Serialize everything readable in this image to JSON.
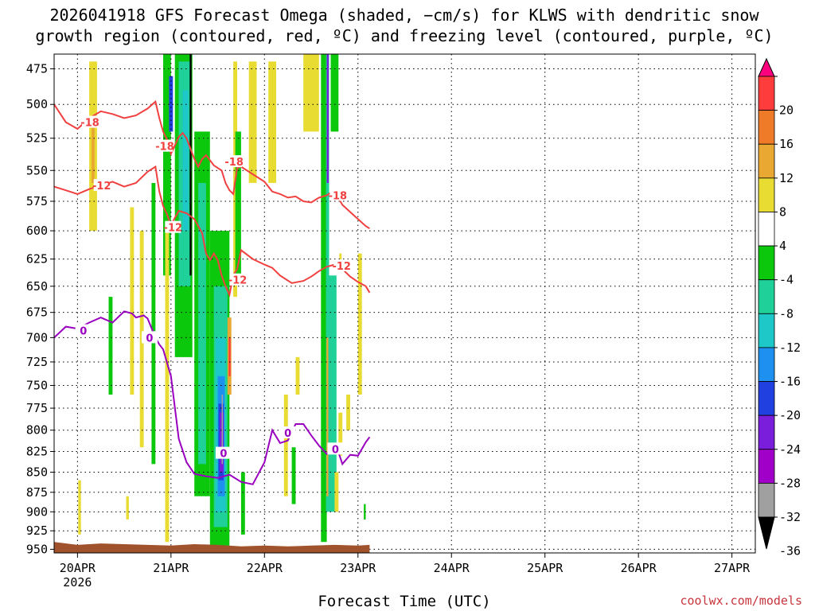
{
  "title": {
    "line1": "2026041918 GFS Forecast Omega (shaded, −cm/s) for KLWS with dendritic snow",
    "line2": "growth region (contoured, red, ºC) and freezing level (contoured, purple, ºC)"
  },
  "credit": "coolwx.com/models",
  "colors": {
    "temperature_contour": "#f04040",
    "freezing_contour": "#9a00c0",
    "terrain": "#a0522d",
    "grid": "#000000"
  },
  "chart_data": {
    "type": "heatmap",
    "xlabel": "Forecast Time (UTC)",
    "ylabel": "",
    "x_ticks": [
      {
        "label": "20APR",
        "sublabel": "2026",
        "time": "2026-04-20T00"
      },
      {
        "label": "21APR",
        "time": "2026-04-21T00"
      },
      {
        "label": "22APR",
        "time": "2026-04-22T00"
      },
      {
        "label": "23APR",
        "time": "2026-04-23T00"
      },
      {
        "label": "24APR",
        "time": "2026-04-24T00"
      },
      {
        "label": "25APR",
        "time": "2026-04-25T00"
      },
      {
        "label": "26APR",
        "time": "2026-04-26T00"
      },
      {
        "label": "27APR",
        "time": "2026-04-27T00"
      }
    ],
    "xlim": [
      "2026-04-19T18",
      "2026-04-27T06"
    ],
    "y_ticks": [
      475,
      500,
      525,
      550,
      575,
      600,
      625,
      650,
      675,
      700,
      725,
      750,
      775,
      800,
      825,
      850,
      875,
      900,
      925,
      950
    ],
    "ylim": [
      955,
      465
    ],
    "y_scale": "log-pressure",
    "grid": true,
    "colorbar": {
      "labels": [
        "20",
        "16",
        "12",
        "8",
        "4",
        "-4",
        "-8",
        "-12",
        "-16",
        "-20",
        "-24",
        "-28",
        "-32",
        "-36"
      ],
      "bins": [
        {
          "from": 20,
          "to": 24,
          "color": "#ff007f"
        },
        {
          "from": 16,
          "to": 20,
          "color": "#ff3c3c"
        },
        {
          "from": 12,
          "to": 16,
          "color": "#ef7a28"
        },
        {
          "from": 8,
          "to": 12,
          "color": "#e8a832"
        },
        {
          "from": 4,
          "to": 8,
          "color": "#e8dc32"
        },
        {
          "from": -4,
          "to": 4,
          "color": "#ffffff"
        },
        {
          "from": -8,
          "to": -4,
          "color": "#0cc80c"
        },
        {
          "from": -12,
          "to": -8,
          "color": "#1fd098"
        },
        {
          "from": -16,
          "to": -12,
          "color": "#1ec8c8"
        },
        {
          "from": -20,
          "to": -16,
          "color": "#1e90f0"
        },
        {
          "from": -24,
          "to": -20,
          "color": "#2040e0"
        },
        {
          "from": -28,
          "to": -24,
          "color": "#7a1edc"
        },
        {
          "from": -32,
          "to": -28,
          "color": "#a000c8"
        },
        {
          "from": -36,
          "to": -32,
          "color": "#a0a0a0"
        },
        {
          "from": -40,
          "to": -36,
          "color": "#000000"
        }
      ]
    },
    "omega_regions": [
      {
        "t0": 3,
        "t1": 5,
        "p_top": 470,
        "p_bot": 600,
        "value": 5
      },
      {
        "t0": 3.6,
        "t1": 4.4,
        "p_top": 515,
        "p_bot": 560,
        "value": 9
      },
      {
        "t0": 0.2,
        "t1": 0.9,
        "p_top": 860,
        "p_bot": 930,
        "value": 5
      },
      {
        "t0": 8,
        "t1": 9,
        "p_top": 660,
        "p_bot": 760,
        "value": -6
      },
      {
        "t0": 12.5,
        "t1": 13.2,
        "p_top": 880,
        "p_bot": 910,
        "value": 5
      },
      {
        "t0": 13.5,
        "t1": 14.5,
        "p_top": 580,
        "p_bot": 760,
        "value": 5
      },
      {
        "t0": 16,
        "t1": 17,
        "p_top": 600,
        "p_bot": 820,
        "value": 6
      },
      {
        "t0": 19,
        "t1": 20,
        "p_top": 560,
        "p_bot": 840,
        "value": -6
      },
      {
        "t0": 22,
        "t1": 24,
        "p_top": 465,
        "p_bot": 640,
        "value": -6
      },
      {
        "t0": 23.5,
        "t1": 24.5,
        "p_top": 480,
        "p_bot": 520,
        "value": -24
      },
      {
        "t0": 22.5,
        "t1": 23.5,
        "p_top": 600,
        "p_bot": 940,
        "value": 6
      },
      {
        "t0": 25,
        "t1": 29.5,
        "p_top": 465,
        "p_bot": 720,
        "value": -6
      },
      {
        "t0": 26,
        "t1": 29,
        "p_top": 470,
        "p_bot": 650,
        "value": -10
      },
      {
        "t0": 27,
        "t1": 28.5,
        "p_top": 490,
        "p_bot": 600,
        "value": -14
      },
      {
        "t0": 28.8,
        "t1": 29.3,
        "p_top": 465,
        "p_bot": 640,
        "value": -38
      },
      {
        "t0": 30,
        "t1": 34,
        "p_top": 520,
        "p_bot": 880,
        "value": -6
      },
      {
        "t0": 31,
        "t1": 33,
        "p_top": 560,
        "p_bot": 840,
        "value": -10
      },
      {
        "t0": 34,
        "t1": 39,
        "p_top": 600,
        "p_bot": 945,
        "value": -6
      },
      {
        "t0": 35,
        "t1": 38.5,
        "p_top": 650,
        "p_bot": 920,
        "value": -10
      },
      {
        "t0": 35.5,
        "t1": 38,
        "p_top": 700,
        "p_bot": 900,
        "value": -14
      },
      {
        "t0": 36,
        "t1": 37.8,
        "p_top": 740,
        "p_bot": 880,
        "value": -18
      },
      {
        "t0": 36.2,
        "t1": 37.5,
        "p_top": 770,
        "p_bot": 860,
        "value": -22
      },
      {
        "t0": 36.5,
        "t1": 37.5,
        "p_top": 780,
        "p_bot": 850,
        "value": -26
      },
      {
        "t0": 37,
        "t1": 37.3,
        "p_top": 760,
        "p_bot": 840,
        "value": -34
      },
      {
        "t0": 38.5,
        "t1": 39.5,
        "p_top": 680,
        "p_bot": 760,
        "value": 10
      },
      {
        "t0": 38.8,
        "t1": 39.3,
        "p_top": 700,
        "p_bot": 740,
        "value": 16
      },
      {
        "t0": 40,
        "t1": 41,
        "p_top": 470,
        "p_bot": 660,
        "value": 5
      },
      {
        "t0": 40.5,
        "t1": 42,
        "p_top": 520,
        "p_bot": 640,
        "value": -6
      },
      {
        "t0": 42,
        "t1": 43,
        "p_top": 850,
        "p_bot": 930,
        "value": -6
      },
      {
        "t0": 44,
        "t1": 46,
        "p_top": 470,
        "p_bot": 560,
        "value": 5
      },
      {
        "t0": 49,
        "t1": 51,
        "p_top": 470,
        "p_bot": 560,
        "value": 5
      },
      {
        "t0": 53,
        "t1": 54,
        "p_top": 760,
        "p_bot": 880,
        "value": 5
      },
      {
        "t0": 56,
        "t1": 57,
        "p_top": 720,
        "p_bot": 760,
        "value": 5
      },
      {
        "t0": 55,
        "t1": 56,
        "p_top": 820,
        "p_bot": 890,
        "value": -6
      },
      {
        "t0": 58,
        "t1": 62,
        "p_top": 465,
        "p_bot": 520,
        "value": 5
      },
      {
        "t0": 62.5,
        "t1": 64,
        "p_top": 465,
        "p_bot": 940,
        "value": -6
      },
      {
        "t0": 63.8,
        "t1": 64.6,
        "p_top": 465,
        "p_bot": 900,
        "value": -10
      },
      {
        "t0": 64,
        "t1": 64.5,
        "p_top": 465,
        "p_bot": 560,
        "value": -26
      },
      {
        "t0": 63.9,
        "t1": 64.4,
        "p_top": 700,
        "p_bot": 880,
        "value": 10
      },
      {
        "t0": 64.6,
        "t1": 66.5,
        "p_top": 640,
        "p_bot": 900,
        "value": -10
      },
      {
        "t0": 65,
        "t1": 67,
        "p_top": 465,
        "p_bot": 520,
        "value": -6
      },
      {
        "t0": 66,
        "t1": 67,
        "p_top": 850,
        "p_bot": 900,
        "value": 5
      },
      {
        "t0": 67,
        "t1": 68,
        "p_top": 780,
        "p_bot": 830,
        "value": 5
      },
      {
        "t0": 67.2,
        "t1": 67.8,
        "p_top": 620,
        "p_bot": 635,
        "value": 5
      },
      {
        "t0": 69,
        "t1": 70,
        "p_top": 760,
        "p_bot": 800,
        "value": 5
      },
      {
        "t0": 72,
        "t1": 73,
        "p_top": 620,
        "p_bot": 760,
        "value": 5
      },
      {
        "t0": 73.5,
        "t1": 74,
        "p_top": 890,
        "p_bot": 910,
        "value": -6
      }
    ],
    "series": [
      {
        "name": "-18",
        "color": "#f04040",
        "labels": [
          {
            "t": 3.0,
            "p": 513
          },
          {
            "t": 22.2,
            "p": 531
          },
          {
            "t": 40.0,
            "p": 543
          },
          {
            "t": 66.6,
            "p": 570
          }
        ],
        "points": [
          [
            -6,
            500
          ],
          [
            -3,
            513
          ],
          [
            0,
            518
          ],
          [
            3,
            510
          ],
          [
            6,
            505
          ],
          [
            9,
            507
          ],
          [
            12,
            510
          ],
          [
            15,
            508
          ],
          [
            18,
            503
          ],
          [
            20,
            498
          ],
          [
            21,
            510
          ],
          [
            22,
            520
          ],
          [
            23,
            526
          ],
          [
            24,
            537
          ],
          [
            26,
            524
          ],
          [
            27,
            521
          ],
          [
            28,
            525
          ],
          [
            29,
            533
          ],
          [
            30,
            541
          ],
          [
            31,
            547
          ],
          [
            32,
            541
          ],
          [
            33,
            538
          ],
          [
            35,
            546
          ],
          [
            37,
            550
          ],
          [
            38,
            560
          ],
          [
            39,
            566
          ],
          [
            40,
            569
          ],
          [
            41,
            548
          ],
          [
            42,
            547
          ],
          [
            45,
            553
          ],
          [
            48,
            559
          ],
          [
            50,
            567
          ],
          [
            52,
            569
          ],
          [
            54,
            572
          ],
          [
            56,
            571
          ],
          [
            58,
            575
          ],
          [
            60,
            576
          ],
          [
            62,
            572
          ],
          [
            64,
            570
          ],
          [
            65,
            568
          ],
          [
            66,
            567
          ],
          [
            68,
            578
          ],
          [
            70,
            584
          ],
          [
            72,
            590
          ],
          [
            74,
            596
          ],
          [
            75,
            598
          ]
        ]
      },
      {
        "name": "-12",
        "color": "#f04040",
        "labels": [
          {
            "t": 6.0,
            "p": 562
          },
          {
            "t": 24.3,
            "p": 597
          },
          {
            "t": 40.9,
            "p": 644
          },
          {
            "t": 67.6,
            "p": 631
          }
        ],
        "points": [
          [
            -6,
            563
          ],
          [
            -3,
            566
          ],
          [
            0,
            569
          ],
          [
            3,
            565
          ],
          [
            6,
            562
          ],
          [
            9,
            559
          ],
          [
            12,
            563
          ],
          [
            15,
            560
          ],
          [
            18,
            551
          ],
          [
            20,
            547
          ],
          [
            21,
            567
          ],
          [
            22,
            579
          ],
          [
            23,
            586
          ],
          [
            24,
            595
          ],
          [
            26,
            583
          ],
          [
            28,
            585
          ],
          [
            30,
            590
          ],
          [
            32,
            602
          ],
          [
            33,
            620
          ],
          [
            34,
            626
          ],
          [
            35,
            620
          ],
          [
            36,
            626
          ],
          [
            37,
            640
          ],
          [
            38,
            650
          ],
          [
            39,
            658
          ],
          [
            40,
            640
          ],
          [
            41,
            634
          ],
          [
            42,
            617
          ],
          [
            45,
            625
          ],
          [
            48,
            630
          ],
          [
            50,
            633
          ],
          [
            52,
            640
          ],
          [
            55,
            647
          ],
          [
            58,
            645
          ],
          [
            60,
            641
          ],
          [
            62,
            636
          ],
          [
            64,
            632
          ],
          [
            66,
            630
          ],
          [
            68,
            634
          ],
          [
            70,
            641
          ],
          [
            72,
            646
          ],
          [
            74,
            650
          ],
          [
            75,
            656
          ]
        ]
      },
      {
        "name": "0",
        "color": "#9a00c0",
        "labels": [
          {
            "t": 1.3,
            "p": 693
          },
          {
            "t": 18.3,
            "p": 700
          },
          {
            "t": 37.3,
            "p": 827
          },
          {
            "t": 53.8,
            "p": 803
          },
          {
            "t": 66.0,
            "p": 822
          }
        ],
        "points": [
          [
            -6,
            700
          ],
          [
            -3,
            689
          ],
          [
            0,
            691
          ],
          [
            3,
            685
          ],
          [
            6,
            680
          ],
          [
            9,
            685
          ],
          [
            12,
            674
          ],
          [
            14,
            676
          ],
          [
            15,
            680
          ],
          [
            17,
            678
          ],
          [
            18,
            681
          ],
          [
            20,
            700
          ],
          [
            21,
            707
          ],
          [
            22,
            712
          ],
          [
            24,
            740
          ],
          [
            26,
            810
          ],
          [
            28,
            838
          ],
          [
            30,
            852
          ],
          [
            33,
            855
          ],
          [
            36,
            857
          ],
          [
            39,
            853
          ],
          [
            42,
            862
          ],
          [
            45,
            865
          ],
          [
            48,
            838
          ],
          [
            50,
            800
          ],
          [
            52,
            815
          ],
          [
            54,
            812
          ],
          [
            56,
            793
          ],
          [
            58,
            793
          ],
          [
            60,
            806
          ],
          [
            62,
            818
          ],
          [
            64,
            828
          ],
          [
            66,
            819
          ],
          [
            67,
            826
          ],
          [
            68,
            840
          ],
          [
            70,
            829
          ],
          [
            72,
            830
          ],
          [
            74,
            814
          ],
          [
            75,
            808
          ]
        ]
      }
    ],
    "terrain": {
      "points": [
        [
          -6,
          940
        ],
        [
          0,
          944
        ],
        [
          6,
          942
        ],
        [
          12,
          943
        ],
        [
          18,
          944
        ],
        [
          24,
          945
        ],
        [
          30,
          943
        ],
        [
          36,
          944
        ],
        [
          42,
          946
        ],
        [
          48,
          945
        ],
        [
          54,
          946
        ],
        [
          60,
          945
        ],
        [
          66,
          944
        ],
        [
          72,
          945
        ],
        [
          75,
          944
        ]
      ]
    }
  }
}
